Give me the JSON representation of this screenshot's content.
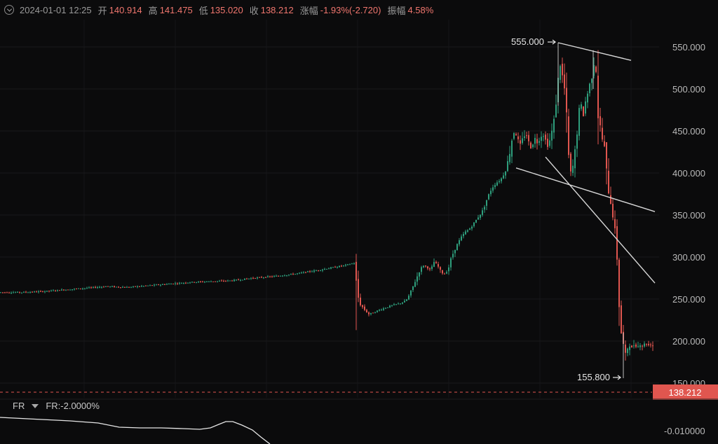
{
  "header": {
    "timestamp": "2024-01-01 12:25",
    "open_label": "开",
    "open": "140.914",
    "high_label": "高",
    "high": "141.475",
    "low_label": "低",
    "low": "135.020",
    "close_label": "收",
    "close": "138.212",
    "change_label": "涨幅",
    "change": "-1.93%(-2.720)",
    "amplitude_label": "振幅",
    "amplitude": "4.58%"
  },
  "indicator": {
    "name": "FR",
    "value_text": "FR:-2.0000%",
    "axis_label": "-0.010000"
  },
  "last_price": "138.212",
  "annotations": {
    "max_label": "555.000",
    "min_label": "155.800"
  },
  "colors": {
    "background": "#0b0b0c",
    "up": "#2e9e7c",
    "down": "#e0564f",
    "trendline": "#d8d8d8",
    "last_price": "#e0564f",
    "text_red": "#f0766e"
  },
  "chart_data": {
    "type": "candlestick",
    "y_ticks": [
      "550.000",
      "500.000",
      "450.000",
      "400.000",
      "350.000",
      "300.000",
      "250.000",
      "200.000",
      "150.000"
    ],
    "ylim": [
      134,
      574
    ],
    "grid": true,
    "annotations": [
      {
        "label": "555.000",
        "value": 555.0
      },
      {
        "label": "155.800",
        "value": 155.8
      }
    ],
    "last_price": 138.212,
    "price_path": [
      [
        0,
        258
      ],
      [
        30,
        258
      ],
      [
        60,
        259
      ],
      [
        90,
        261
      ],
      [
        120,
        263
      ],
      [
        150,
        265
      ],
      [
        180,
        264
      ],
      [
        210,
        266
      ],
      [
        240,
        268
      ],
      [
        270,
        270
      ],
      [
        300,
        271
      ],
      [
        330,
        272
      ],
      [
        360,
        275
      ],
      [
        390,
        277
      ],
      [
        420,
        280
      ],
      [
        450,
        284
      ],
      [
        470,
        287
      ],
      [
        490,
        290
      ],
      [
        500,
        292
      ],
      [
        505,
        293
      ],
      [
        508,
        258
      ],
      [
        512,
        245
      ],
      [
        518,
        238
      ],
      [
        525,
        232
      ],
      [
        532,
        234
      ],
      [
        540,
        237
      ],
      [
        550,
        240
      ],
      [
        560,
        243
      ],
      [
        570,
        245
      ],
      [
        578,
        248
      ],
      [
        583,
        255
      ],
      [
        588,
        265
      ],
      [
        593,
        275
      ],
      [
        598,
        285
      ],
      [
        603,
        290
      ],
      [
        608,
        288
      ],
      [
        613,
        284
      ],
      [
        618,
        294
      ],
      [
        623,
        290
      ],
      [
        628,
        282
      ],
      [
        633,
        280
      ],
      [
        638,
        285
      ],
      [
        643,
        300
      ],
      [
        648,
        310
      ],
      [
        653,
        318
      ],
      [
        658,
        325
      ],
      [
        663,
        330
      ],
      [
        668,
        333
      ],
      [
        673,
        338
      ],
      [
        678,
        344
      ],
      [
        683,
        350
      ],
      [
        688,
        356
      ],
      [
        693,
        368
      ],
      [
        698,
        378
      ],
      [
        703,
        385
      ],
      [
        708,
        389
      ],
      [
        713,
        392
      ],
      [
        717,
        398
      ],
      [
        721,
        405
      ],
      [
        725,
        420
      ],
      [
        729,
        440
      ],
      [
        733,
        452
      ],
      [
        737,
        440
      ],
      [
        741,
        432
      ],
      [
        745,
        442
      ],
      [
        749,
        448
      ],
      [
        753,
        436
      ],
      [
        757,
        430
      ],
      [
        761,
        442
      ],
      [
        765,
        437
      ],
      [
        769,
        442
      ],
      [
        773,
        448
      ],
      [
        777,
        439
      ],
      [
        781,
        432
      ],
      [
        785,
        445
      ],
      [
        789,
        462
      ],
      [
        792,
        485
      ],
      [
        795,
        510
      ],
      [
        798,
        530
      ],
      [
        801,
        515
      ],
      [
        804,
        500
      ],
      [
        807,
        465
      ],
      [
        810,
        418
      ],
      [
        813,
        398
      ],
      [
        816,
        408
      ],
      [
        819,
        425
      ],
      [
        822,
        450
      ],
      [
        825,
        472
      ],
      [
        828,
        480
      ],
      [
        831,
        470
      ],
      [
        834,
        485
      ],
      [
        837,
        495
      ],
      [
        840,
        505
      ],
      [
        843,
        515
      ],
      [
        846,
        532
      ],
      [
        849,
        522
      ],
      [
        852,
        470
      ],
      [
        855,
        455
      ],
      [
        858,
        440
      ],
      [
        861,
        430
      ],
      [
        864,
        400
      ],
      [
        867,
        380
      ],
      [
        870,
        365
      ],
      [
        873,
        350
      ],
      [
        876,
        330
      ],
      [
        879,
        300
      ],
      [
        882,
        245
      ],
      [
        885,
        210
      ],
      [
        888,
        195
      ],
      [
        891,
        182
      ],
      [
        894,
        192
      ],
      [
        897,
        196
      ],
      [
        900,
        191
      ],
      [
        904,
        197
      ],
      [
        908,
        193
      ],
      [
        912,
        197
      ],
      [
        916,
        194
      ],
      [
        920,
        198
      ],
      [
        924,
        195
      ],
      [
        928,
        197
      ],
      [
        931,
        193
      ]
    ],
    "trendlines": [
      {
        "x1": 796,
        "y1": 555,
        "x2": 900,
        "y2": 534
      },
      {
        "x1": 736,
        "y1": 406,
        "x2": 934,
        "y2": 354
      },
      {
        "x1": 778,
        "y1": 419,
        "x2": 934,
        "y2": 269
      }
    ],
    "spikes": [
      {
        "x": 508,
        "high": 293,
        "low": 213
      },
      {
        "x": 796,
        "high": 555,
        "low": 480
      },
      {
        "x": 846,
        "high": 546,
        "low": 500
      },
      {
        "x": 889,
        "high": 210,
        "low": 155.8
      }
    ]
  },
  "fr_data": {
    "path": [
      [
        0,
        596
      ],
      [
        40,
        598
      ],
      [
        100,
        601
      ],
      [
        140,
        604
      ],
      [
        170,
        610
      ],
      [
        200,
        611
      ],
      [
        230,
        611
      ],
      [
        260,
        612
      ],
      [
        285,
        613
      ],
      [
        300,
        611
      ],
      [
        312,
        606
      ],
      [
        322,
        602
      ],
      [
        332,
        602
      ],
      [
        345,
        607
      ],
      [
        360,
        614
      ],
      [
        372,
        624
      ],
      [
        385,
        634
      ]
    ]
  }
}
